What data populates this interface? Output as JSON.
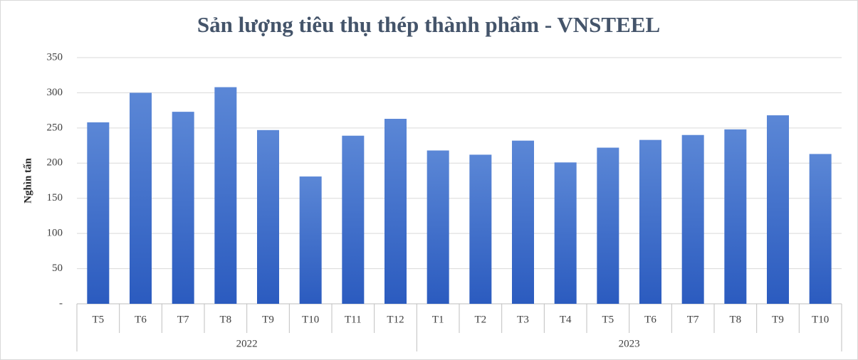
{
  "chart_data": {
    "type": "bar",
    "title": "Sản lượng tiêu thụ thép thành phẩm - VNSTEEL",
    "y_label": "Nghìn tấn",
    "groups": [
      {
        "name": "2022",
        "categories": [
          "T5",
          "T6",
          "T7",
          "T8",
          "T9",
          "T10",
          "T11",
          "T12"
        ],
        "values": [
          258,
          300,
          273,
          308,
          247,
          181,
          239,
          263
        ]
      },
      {
        "name": "2023",
        "categories": [
          "T1",
          "T2",
          "T3",
          "T4",
          "T5",
          "T6",
          "T7",
          "T8",
          "T9",
          "T10"
        ],
        "values": [
          218,
          212,
          232,
          201,
          222,
          233,
          240,
          248,
          268,
          213
        ]
      }
    ],
    "color": "#4472c4",
    "ylim": [
      0,
      350
    ],
    "yticks": [
      {
        "value": 0,
        "label": "-"
      },
      50,
      100,
      150,
      200,
      250,
      300,
      350
    ],
    "grid": true
  }
}
